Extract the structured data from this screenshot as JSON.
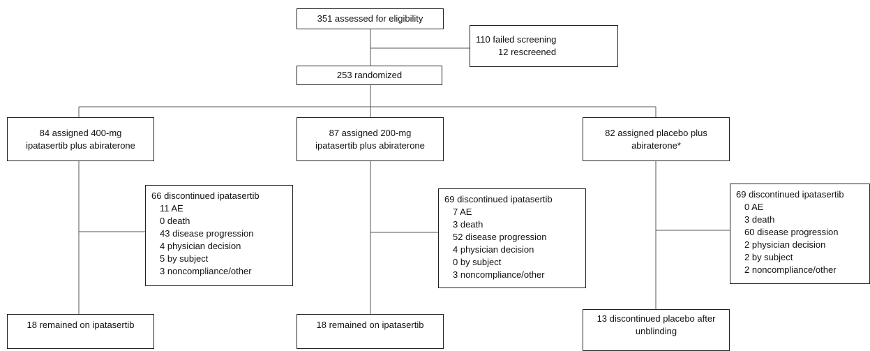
{
  "nodes": [
    {
      "lines": [
        "351 assessed for eligibility"
      ]
    },
    {
      "lines": [
        "110 failed screening",
        "12 rescreened"
      ]
    },
    {
      "lines": [
        "253 randomized"
      ]
    },
    {
      "lines": [
        "84 assigned 400-mg",
        "ipatasertib plus abiraterone"
      ]
    },
    {
      "lines": [
        "87 assigned 200-mg",
        "ipatasertib plus abiraterone"
      ]
    },
    {
      "lines": [
        "82 assigned placebo plus",
        "abiraterone*"
      ]
    },
    {
      "heading": "66 discontinued ipatasertib",
      "items": [
        "11 AE",
        "0 death",
        "43 disease progression",
        "4 physician decision",
        "5 by subject",
        "3 noncompliance/other"
      ]
    },
    {
      "heading": "69 discontinued ipatasertib",
      "items": [
        "7 AE",
        "3 death",
        "52 disease progression",
        "4 physician decision",
        "0 by subject",
        "3 noncompliance/other"
      ]
    },
    {
      "heading": "69 discontinued ipatasertib",
      "items": [
        "0 AE",
        "3 death",
        "60 disease progression",
        "2 physician decision",
        "2 by subject",
        "2 noncompliance/other"
      ]
    },
    {
      "lines": [
        "18 remained on ipatasertib"
      ]
    },
    {
      "lines": [
        "18 remained on ipatasertib"
      ]
    },
    {
      "lines": [
        "13 discontinued placebo after",
        "unblinding"
      ]
    }
  ]
}
